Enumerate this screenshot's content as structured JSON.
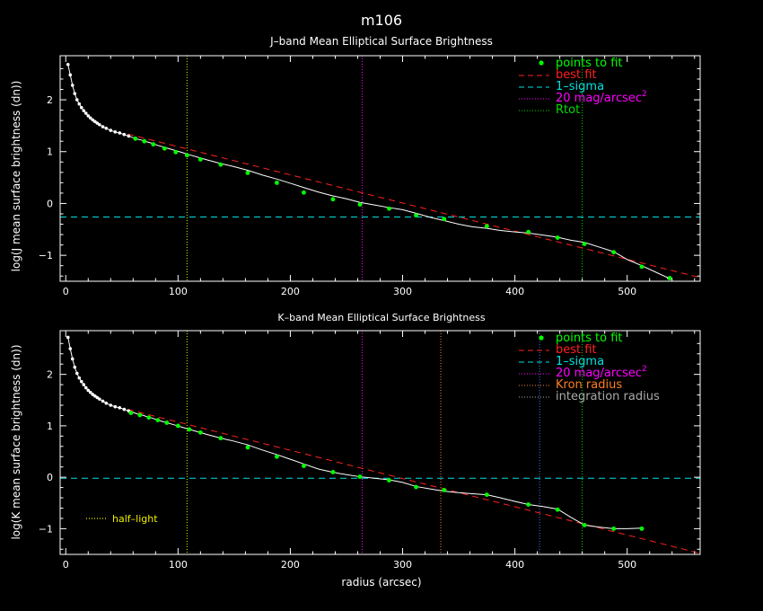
{
  "figure": {
    "title": "m106",
    "xlabel": "radius (arcsec)"
  },
  "chart_data": [
    {
      "type": "line",
      "title": "J–band Mean Elliptical Surface Brightness",
      "ylabel": "log(J mean surface brightness (dn))",
      "xlim": [
        -5,
        565
      ],
      "ylim": [
        -1.5,
        2.85
      ],
      "x_ticks": [
        0,
        100,
        200,
        300,
        400,
        500
      ],
      "y_ticks": [
        -1,
        0,
        1,
        2
      ],
      "legend": [
        {
          "label": "points to fit",
          "color": "#00ff00",
          "style": "dot"
        },
        {
          "label": "best fit",
          "color": "#ff2020",
          "style": "dash"
        },
        {
          "label": "1–sigma",
          "color": "#00e0e0",
          "style": "dash"
        },
        {
          "label": "20 mag/arcsec",
          "sup": "2",
          "color": "#ff00ff",
          "style": "dot"
        },
        {
          "label": "Rtot",
          "color": "#00dd00",
          "style": "dot"
        }
      ],
      "profile": {
        "x": [
          2,
          4,
          6,
          8,
          10,
          12,
          14,
          16,
          18,
          20,
          22,
          24,
          26,
          28,
          30,
          33,
          36,
          40,
          44,
          48,
          52,
          56,
          60,
          64,
          68,
          72,
          77,
          82,
          90,
          98,
          104,
          110,
          118,
          126,
          138,
          150,
          162,
          175,
          188,
          200,
          213,
          225,
          237,
          250,
          262,
          275,
          288,
          300,
          312,
          325,
          337,
          350,
          362,
          375,
          387,
          400,
          412,
          425,
          438,
          450,
          462,
          475,
          488,
          500,
          513,
          525,
          537
        ],
        "y": [
          2.68,
          2.48,
          2.28,
          2.12,
          2.0,
          1.92,
          1.85,
          1.79,
          1.74,
          1.69,
          1.65,
          1.61,
          1.58,
          1.55,
          1.52,
          1.48,
          1.45,
          1.41,
          1.38,
          1.36,
          1.33,
          1.3,
          1.27,
          1.24,
          1.22,
          1.19,
          1.16,
          1.12,
          1.07,
          1.02,
          0.98,
          0.94,
          0.89,
          0.84,
          0.77,
          0.71,
          0.64,
          0.55,
          0.47,
          0.39,
          0.3,
          0.22,
          0.15,
          0.09,
          0.02,
          -0.03,
          -0.08,
          -0.12,
          -0.19,
          -0.27,
          -0.33,
          -0.4,
          -0.45,
          -0.48,
          -0.52,
          -0.55,
          -0.57,
          -0.61,
          -0.65,
          -0.71,
          -0.75,
          -0.84,
          -0.93,
          -1.08,
          -1.2,
          -1.32,
          -1.44
        ]
      },
      "fit_points": {
        "x": [
          62,
          70,
          78,
          88,
          98,
          108,
          120,
          138,
          162,
          188,
          212,
          238,
          262,
          288,
          312,
          337,
          375,
          412,
          438,
          462,
          488,
          513,
          538
        ],
        "y": [
          1.25,
          1.2,
          1.14,
          1.06,
          0.99,
          0.93,
          0.85,
          0.75,
          0.59,
          0.4,
          0.21,
          0.08,
          -0.02,
          -0.1,
          -0.23,
          -0.3,
          -0.44,
          -0.55,
          -0.66,
          -0.78,
          -0.94,
          -1.22,
          -1.44
        ]
      },
      "best_fit": {
        "x": [
          55,
          565
        ],
        "y": [
          1.34,
          -1.43
        ]
      },
      "sigma_level": -0.26,
      "vlines": [
        {
          "x": 108,
          "color": "#ccff00"
        },
        {
          "x": 264,
          "color": "#ff00ff"
        },
        {
          "x": 460,
          "color": "#00dd00"
        }
      ]
    },
    {
      "type": "line",
      "title": "K–band Mean Elliptical Surface Brightness",
      "ylabel": "log(K mean surface brightness (dn))",
      "xlim": [
        -5,
        565
      ],
      "ylim": [
        -1.5,
        2.85
      ],
      "x_ticks": [
        0,
        100,
        200,
        300,
        400,
        500
      ],
      "y_ticks": [
        -1,
        0,
        1,
        2
      ],
      "legend": [
        {
          "label": "points to fit",
          "color": "#00ff00",
          "style": "dot"
        },
        {
          "label": "best fit",
          "color": "#ff2020",
          "style": "dash"
        },
        {
          "label": "1–sigma",
          "color": "#00e0e0",
          "style": "dash"
        },
        {
          "label": "20 mag/arcsec",
          "sup": "2",
          "color": "#ff00ff",
          "style": "dot"
        },
        {
          "label": "Kron radius",
          "color": "#ff7f20",
          "style": "dot"
        },
        {
          "label": "integration radius",
          "color": "#aaaaaa",
          "style": "dot"
        }
      ],
      "annotation": {
        "label": "half–light",
        "color": "#eeee00"
      },
      "profile": {
        "x": [
          2,
          4,
          6,
          8,
          10,
          12,
          14,
          16,
          18,
          20,
          22,
          24,
          26,
          28,
          30,
          33,
          36,
          40,
          44,
          48,
          52,
          56,
          60,
          64,
          68,
          72,
          77,
          82,
          90,
          98,
          104,
          110,
          118,
          126,
          138,
          150,
          162,
          175,
          188,
          200,
          213,
          225,
          237,
          250,
          262,
          275,
          288,
          300,
          312,
          325,
          337,
          350,
          362,
          375,
          387,
          400,
          412,
          425,
          438,
          450,
          462,
          475,
          488,
          500,
          513
        ],
        "y": [
          2.72,
          2.5,
          2.3,
          2.14,
          2.02,
          1.93,
          1.86,
          1.8,
          1.74,
          1.69,
          1.65,
          1.61,
          1.58,
          1.55,
          1.52,
          1.48,
          1.44,
          1.4,
          1.37,
          1.35,
          1.32,
          1.29,
          1.26,
          1.23,
          1.21,
          1.18,
          1.15,
          1.11,
          1.06,
          1.01,
          0.97,
          0.93,
          0.88,
          0.83,
          0.76,
          0.7,
          0.63,
          0.53,
          0.44,
          0.35,
          0.25,
          0.16,
          0.1,
          0.05,
          0.01,
          -0.02,
          -0.05,
          -0.1,
          -0.18,
          -0.23,
          -0.27,
          -0.3,
          -0.32,
          -0.34,
          -0.4,
          -0.47,
          -0.53,
          -0.57,
          -0.62,
          -0.78,
          -0.93,
          -0.97,
          -1.0,
          -1.0,
          -0.99
        ]
      },
      "fit_points": {
        "x": [
          58,
          66,
          74,
          82,
          90,
          100,
          110,
          120,
          138,
          162,
          188,
          212,
          238,
          262,
          288,
          312,
          337,
          375,
          412,
          438,
          462,
          488,
          513
        ],
        "y": [
          1.25,
          1.21,
          1.16,
          1.11,
          1.06,
          1.0,
          0.93,
          0.87,
          0.76,
          0.58,
          0.4,
          0.22,
          0.1,
          0.01,
          -0.06,
          -0.19,
          -0.25,
          -0.34,
          -0.53,
          -0.63,
          -0.93,
          -1.0,
          -1.0
        ]
      },
      "best_fit": {
        "x": [
          55,
          565
        ],
        "y": [
          1.32,
          -1.48
        ]
      },
      "sigma_level": -0.02,
      "vlines": [
        {
          "x": 108,
          "color": "#ccff00"
        },
        {
          "x": 264,
          "color": "#ff00ff"
        },
        {
          "x": 334,
          "color": "#ff7f20"
        },
        {
          "x": 422,
          "color": "#3a7bff"
        },
        {
          "x": 460,
          "color": "#00dd00"
        }
      ]
    }
  ]
}
